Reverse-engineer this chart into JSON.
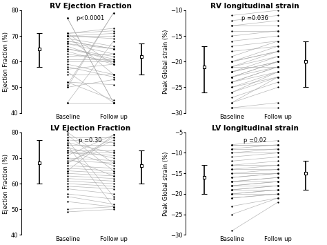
{
  "panels": [
    {
      "title": "RV Ejection Fraction",
      "ylabel": "Ejection Fraction (%)",
      "xlabel_left": "Baseline",
      "xlabel_right": "Follow up",
      "pvalue": "p<0.0001",
      "ylim": [
        40,
        80
      ],
      "yticks": [
        40,
        50,
        60,
        70,
        80
      ],
      "mean_baseline": 65,
      "ci_low_baseline": 58,
      "ci_high_baseline": 71,
      "mean_followup": 62,
      "ci_low_followup": 55,
      "ci_high_followup": 67,
      "baseline_vals": [
        77,
        77,
        71,
        71,
        71,
        70,
        70,
        70,
        70,
        69,
        68,
        68,
        67,
        67,
        66,
        65,
        65,
        64,
        63,
        62,
        61,
        60,
        59,
        58,
        57,
        56,
        55,
        52,
        52,
        51,
        50,
        50,
        44,
        44
      ],
      "followup_vals": [
        44,
        44,
        72,
        59,
        73,
        70,
        71,
        55,
        69,
        66,
        65,
        65,
        63,
        65,
        60,
        62,
        61,
        59,
        60,
        63,
        61,
        60,
        55,
        54,
        59,
        44,
        55,
        51,
        45,
        79,
        53,
        79,
        68,
        44
      ]
    },
    {
      "title": "RV longitudinal strain",
      "ylabel": "Peak Global strain (%)",
      "xlabel_left": "Baseline",
      "xlabel_right": "Follow up",
      "pvalue": "p =0.036",
      "ylim": [
        -30,
        -10
      ],
      "yticks": [
        -30,
        -25,
        -20,
        -15,
        -10
      ],
      "mean_baseline": -21,
      "ci_low_baseline": -26,
      "ci_high_baseline": -17,
      "mean_followup": -20,
      "ci_low_followup": -25,
      "ci_high_followup": -16,
      "baseline_vals": [
        -29,
        -29,
        -28,
        -28,
        -27,
        -26,
        -26,
        -25,
        -25,
        -24,
        -24,
        -24,
        -23,
        -23,
        -23,
        -22,
        -22,
        -22,
        -21,
        -21,
        -21,
        -20,
        -20,
        -20,
        -19,
        -18,
        -17,
        -16,
        -15,
        -14,
        -13,
        -13,
        -12,
        -11
      ],
      "followup_vals": [
        -29,
        -28,
        -25,
        -23,
        -24,
        -23,
        -22,
        -22,
        -23,
        -21,
        -22,
        -21,
        -21,
        -20,
        -20,
        -20,
        -20,
        -19,
        -21,
        -19,
        -18,
        -18,
        -18,
        -17,
        -16,
        -17,
        -16,
        -15,
        -14,
        -14,
        -13,
        -12,
        -11,
        -10
      ]
    },
    {
      "title": "LV Ejection Fraction",
      "ylabel": "Ejection Fraction (%)",
      "xlabel_left": "Baseline",
      "xlabel_right": "Follow up",
      "pvalue": "p =0.30",
      "ylim": [
        40,
        80
      ],
      "yticks": [
        40,
        50,
        60,
        70,
        80
      ],
      "mean_baseline": 68,
      "ci_low_baseline": 60,
      "ci_high_baseline": 77,
      "mean_followup": 67,
      "ci_low_followup": 60,
      "ci_high_followup": 73,
      "baseline_vals": [
        80,
        79,
        78,
        77,
        77,
        76,
        75,
        75,
        74,
        73,
        73,
        72,
        72,
        71,
        70,
        70,
        69,
        68,
        68,
        67,
        66,
        65,
        65,
        64,
        63,
        62,
        61,
        60,
        59,
        58,
        56,
        55,
        53,
        50,
        49
      ],
      "followup_vals": [
        68,
        65,
        78,
        76,
        55,
        72,
        75,
        51,
        70,
        73,
        67,
        72,
        71,
        79,
        63,
        69,
        68,
        78,
        77,
        66,
        65,
        79,
        64,
        63,
        62,
        61,
        60,
        59,
        58,
        56,
        54,
        52,
        51,
        51,
        50
      ]
    },
    {
      "title": "LV longitudinal strain",
      "ylabel": "Peak Global strain (%)",
      "xlabel_left": "Baseline",
      "xlabel_right": "Follow up",
      "pvalue": "p =0.02",
      "ylim": [
        -30,
        -5
      ],
      "yticks": [
        -30,
        -25,
        -20,
        -15,
        -10,
        -5
      ],
      "mean_baseline": -16,
      "ci_low_baseline": -20,
      "ci_high_baseline": -13,
      "mean_followup": -15,
      "ci_low_followup": -19,
      "ci_high_followup": -12,
      "baseline_vals": [
        -29,
        -25,
        -23,
        -21,
        -21,
        -20,
        -20,
        -20,
        -19,
        -19,
        -19,
        -18,
        -18,
        -18,
        -17,
        -17,
        -17,
        -16,
        -16,
        -15,
        -15,
        -14,
        -14,
        -13,
        -13,
        -12,
        -11,
        -10,
        -10,
        -9,
        -9,
        -8,
        -8,
        -8
      ],
      "followup_vals": [
        -22,
        -21,
        -21,
        -20,
        -20,
        -20,
        -19,
        -19,
        -19,
        -18,
        -18,
        -18,
        -17,
        -17,
        -17,
        -16,
        -16,
        -15,
        -15,
        -15,
        -14,
        -14,
        -13,
        -13,
        -12,
        -11,
        -10,
        -10,
        -9,
        -9,
        -8,
        -8,
        -8,
        -7
      ]
    }
  ],
  "line_color": "#aaaaaa",
  "dot_color": "#000000",
  "errorbar_color": "#000000",
  "bg_color": "#ffffff",
  "pvalue_fontsize": 6,
  "title_fontsize": 7.5,
  "label_fontsize": 6,
  "tick_fontsize": 6
}
